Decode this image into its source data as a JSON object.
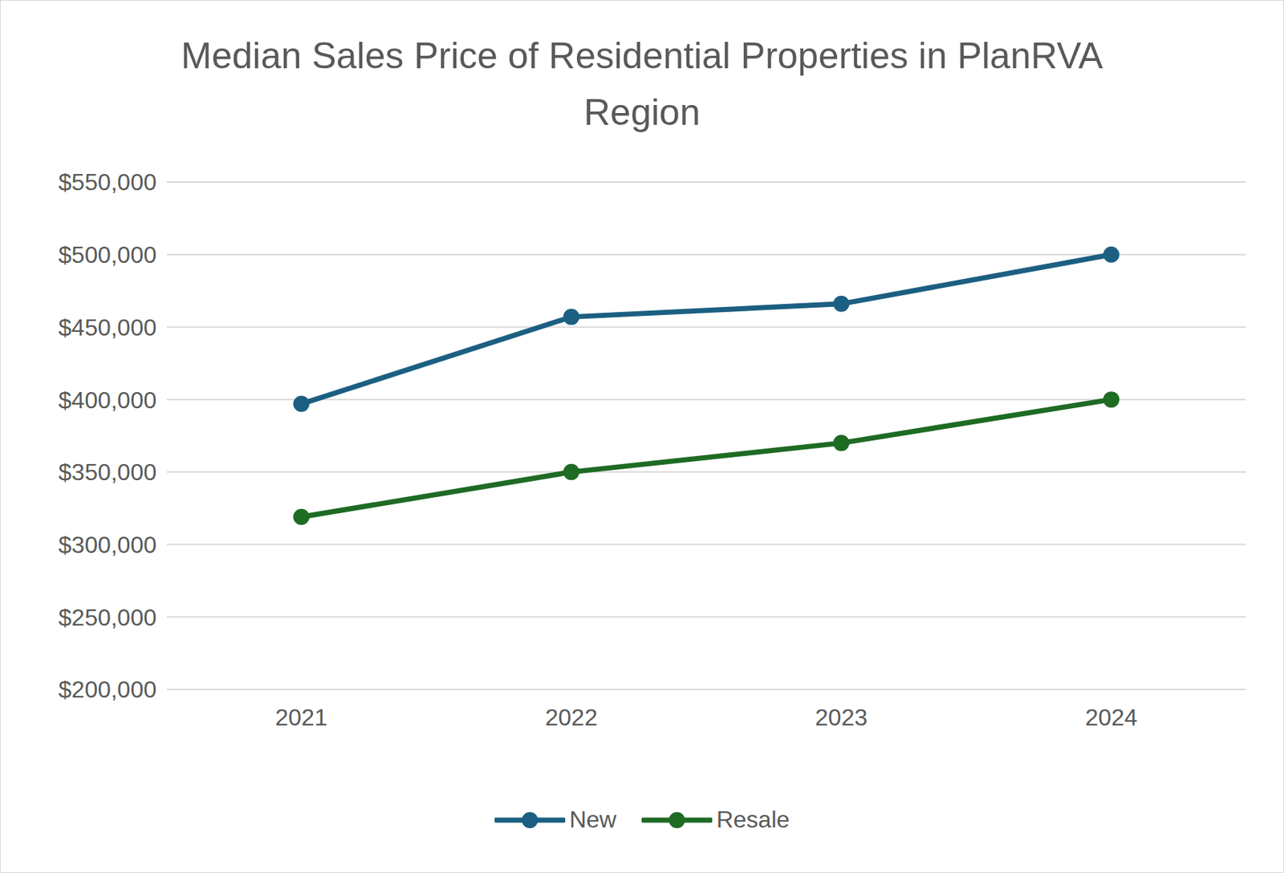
{
  "chart_data": {
    "type": "line",
    "title": "Median Sales Price of Residential Properties in PlanRVA Region",
    "categories": [
      "2021",
      "2022",
      "2023",
      "2024"
    ],
    "series": [
      {
        "name": "New",
        "color": "#1c5f82",
        "values": [
          397000,
          457000,
          466000,
          500000
        ]
      },
      {
        "name": "Resale",
        "color": "#1e6b24",
        "values": [
          319000,
          350000,
          370000,
          400000
        ]
      }
    ],
    "ylim": [
      200000,
      550000
    ],
    "yticks": [
      {
        "value": 200000,
        "label": "$200,000"
      },
      {
        "value": 250000,
        "label": "$250,000"
      },
      {
        "value": 300000,
        "label": "$300,000"
      },
      {
        "value": 350000,
        "label": "$350,000"
      },
      {
        "value": 400000,
        "label": "$400,000"
      },
      {
        "value": 450000,
        "label": "$450,000"
      },
      {
        "value": 500000,
        "label": "$500,000"
      },
      {
        "value": 550000,
        "label": "$550,000"
      }
    ],
    "grid": true,
    "legend": "bottom",
    "marker": "circle"
  }
}
